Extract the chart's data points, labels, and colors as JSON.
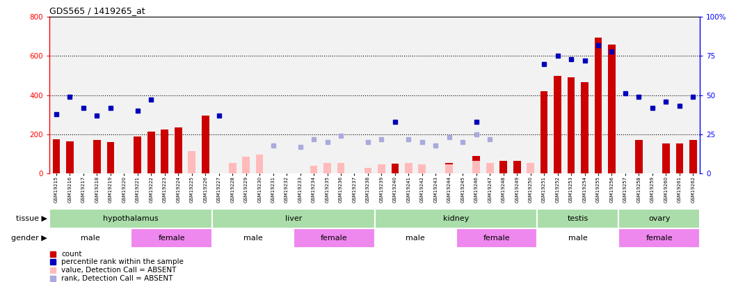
{
  "title": "GDS565 / 1419265_at",
  "samples": [
    "GSM19215",
    "GSM19216",
    "GSM19217",
    "GSM19218",
    "GSM19219",
    "GSM19220",
    "GSM19221",
    "GSM19222",
    "GSM19223",
    "GSM19224",
    "GSM19225",
    "GSM19226",
    "GSM19227",
    "GSM19228",
    "GSM19229",
    "GSM19230",
    "GSM19231",
    "GSM19232",
    "GSM19233",
    "GSM19234",
    "GSM19235",
    "GSM19236",
    "GSM19237",
    "GSM19238",
    "GSM19239",
    "GSM19240",
    "GSM19241",
    "GSM19242",
    "GSM19243",
    "GSM19244",
    "GSM19245",
    "GSM19246",
    "GSM19247",
    "GSM19248",
    "GSM19249",
    "GSM19250",
    "GSM19251",
    "GSM19252",
    "GSM19253",
    "GSM19254",
    "GSM19255",
    "GSM19256",
    "GSM19257",
    "GSM19258",
    "GSM19259",
    "GSM19260",
    "GSM19261",
    "GSM19262"
  ],
  "count": [
    175,
    165,
    null,
    170,
    160,
    null,
    190,
    215,
    225,
    235,
    null,
    295,
    null,
    null,
    null,
    null,
    null,
    null,
    null,
    null,
    null,
    null,
    null,
    null,
    null,
    50,
    null,
    null,
    null,
    55,
    null,
    90,
    null,
    65,
    65,
    null,
    420,
    500,
    490,
    465,
    695,
    660,
    null,
    170,
    null,
    155,
    155,
    170
  ],
  "percentile_rank": [
    38,
    49,
    42,
    37,
    42,
    null,
    40,
    47,
    null,
    null,
    null,
    null,
    37,
    null,
    null,
    null,
    null,
    null,
    null,
    null,
    null,
    null,
    null,
    null,
    null,
    33,
    null,
    null,
    null,
    null,
    null,
    33,
    null,
    null,
    null,
    null,
    70,
    75,
    73,
    72,
    82,
    78,
    51,
    49,
    42,
    46,
    43,
    49
  ],
  "count_absent": [
    null,
    null,
    null,
    null,
    null,
    null,
    null,
    null,
    null,
    null,
    115,
    null,
    null,
    55,
    85,
    95,
    null,
    null,
    null,
    38,
    55,
    55,
    null,
    28,
    45,
    null,
    55,
    45,
    null,
    48,
    null,
    65,
    55,
    null,
    null,
    55,
    null,
    null,
    null,
    null,
    null,
    null,
    null,
    null,
    null,
    null,
    null,
    null
  ],
  "rank_absent": [
    null,
    null,
    null,
    null,
    null,
    null,
    null,
    null,
    null,
    null,
    null,
    null,
    null,
    null,
    null,
    null,
    18,
    null,
    17,
    22,
    20,
    24,
    null,
    20,
    22,
    null,
    22,
    20,
    18,
    23,
    20,
    25,
    22,
    null,
    null,
    null,
    null,
    null,
    null,
    null,
    null,
    null,
    null,
    null,
    null,
    null,
    null,
    null
  ],
  "ylim_left": [
    0,
    800
  ],
  "ylim_right": [
    0,
    100
  ],
  "yticks_left": [
    0,
    200,
    400,
    600,
    800
  ],
  "yticks_right": [
    0,
    25,
    50,
    75,
    100
  ],
  "left_tick_labels": [
    "0",
    "200",
    "400",
    "600",
    "800"
  ],
  "right_tick_labels": [
    "0",
    "25",
    "50",
    "75",
    "100%"
  ],
  "bar_color": "#cc0000",
  "bar_absent_color": "#ffbbbb",
  "dot_color": "#0000bb",
  "dot_absent_color": "#aaaadd",
  "tissue_groups": [
    {
      "label": "hypothalamus",
      "start": 0,
      "end": 11
    },
    {
      "label": "liver",
      "start": 12,
      "end": 23
    },
    {
      "label": "kidney",
      "start": 24,
      "end": 35
    },
    {
      "label": "testis",
      "start": 36,
      "end": 41
    },
    {
      "label": "ovary",
      "start": 42,
      "end": 47
    }
  ],
  "gender_groups": [
    {
      "label": "male",
      "start": 0,
      "end": 5,
      "color": "#ffffff"
    },
    {
      "label": "female",
      "start": 6,
      "end": 11,
      "color": "#ee88ee"
    },
    {
      "label": "male",
      "start": 12,
      "end": 17,
      "color": "#ffffff"
    },
    {
      "label": "female",
      "start": 18,
      "end": 23,
      "color": "#ee88ee"
    },
    {
      "label": "male",
      "start": 24,
      "end": 29,
      "color": "#ffffff"
    },
    {
      "label": "female",
      "start": 30,
      "end": 35,
      "color": "#ee88ee"
    },
    {
      "label": "male",
      "start": 36,
      "end": 41,
      "color": "#ffffff"
    },
    {
      "label": "female",
      "start": 42,
      "end": 47,
      "color": "#ee88ee"
    }
  ],
  "tissue_color": "#aaddaa",
  "legend_items": [
    {
      "label": "count",
      "color": "#cc0000"
    },
    {
      "label": "percentile rank within the sample",
      "color": "#0000bb"
    },
    {
      "label": "value, Detection Call = ABSENT",
      "color": "#ffbbbb"
    },
    {
      "label": "rank, Detection Call = ABSENT",
      "color": "#aaaadd"
    }
  ]
}
